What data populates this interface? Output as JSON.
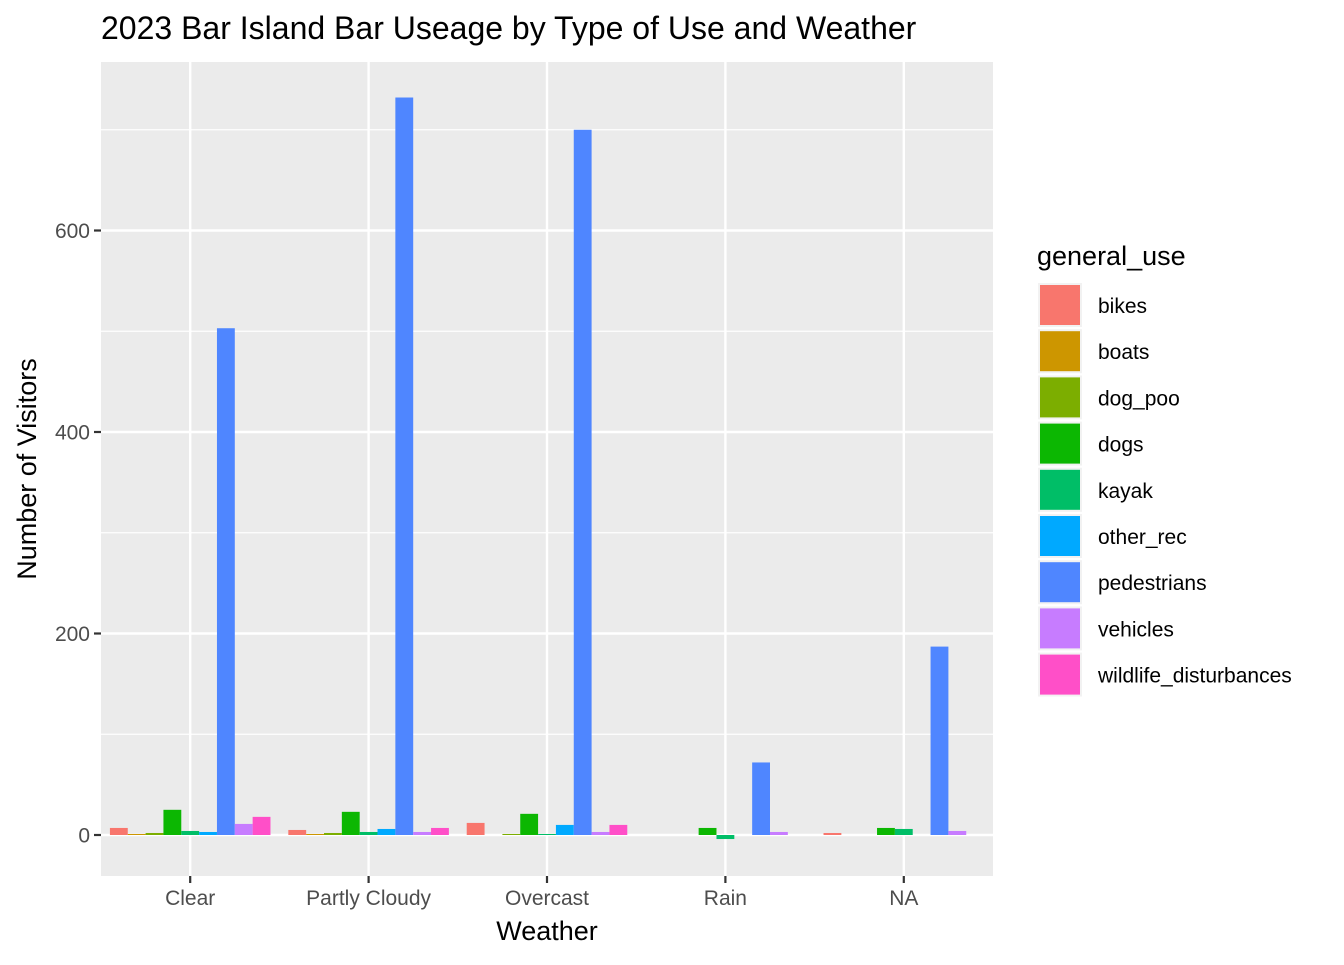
{
  "chart_data": {
    "type": "bar",
    "title": "2023 Bar Island Bar Useage by Type of Use and Weather",
    "xlabel": "Weather",
    "ylabel": "Number of Visitors",
    "categories": [
      "Clear",
      "Partly Cloudy",
      "Overcast",
      "Rain",
      "NA"
    ],
    "ylim": [
      -40,
      770
    ],
    "yticks": [
      0,
      200,
      400,
      600
    ],
    "grid": true,
    "legend": {
      "title": "general_use",
      "position": "right"
    },
    "series": [
      {
        "name": "bikes",
        "color": "#F8766D",
        "values": [
          7,
          5,
          12,
          0,
          2
        ]
      },
      {
        "name": "boats",
        "color": "#CD9600",
        "values": [
          1,
          1,
          0,
          0,
          0
        ]
      },
      {
        "name": "dog_poo",
        "color": "#7CAE00",
        "values": [
          2,
          2,
          1,
          0,
          0
        ]
      },
      {
        "name": "dogs",
        "color": "#0CB702",
        "values": [
          25,
          23,
          21,
          7,
          7
        ]
      },
      {
        "name": "kayak",
        "color": "#00BE67",
        "values": [
          4,
          3,
          1,
          -4,
          6
        ]
      },
      {
        "name": "other_rec",
        "color": "#00A9FF",
        "values": [
          3,
          6,
          10,
          0,
          0
        ]
      },
      {
        "name": "pedestrians",
        "color": "#4F86FF",
        "values": [
          503,
          732,
          700,
          72,
          187
        ]
      },
      {
        "name": "vehicles",
        "color": "#C77CFF",
        "values": [
          11,
          3,
          3,
          3,
          4
        ]
      },
      {
        "name": "wildlife_disturbances",
        "color": "#FF4FC8",
        "values": [
          18,
          7,
          10,
          0,
          0
        ]
      }
    ]
  }
}
